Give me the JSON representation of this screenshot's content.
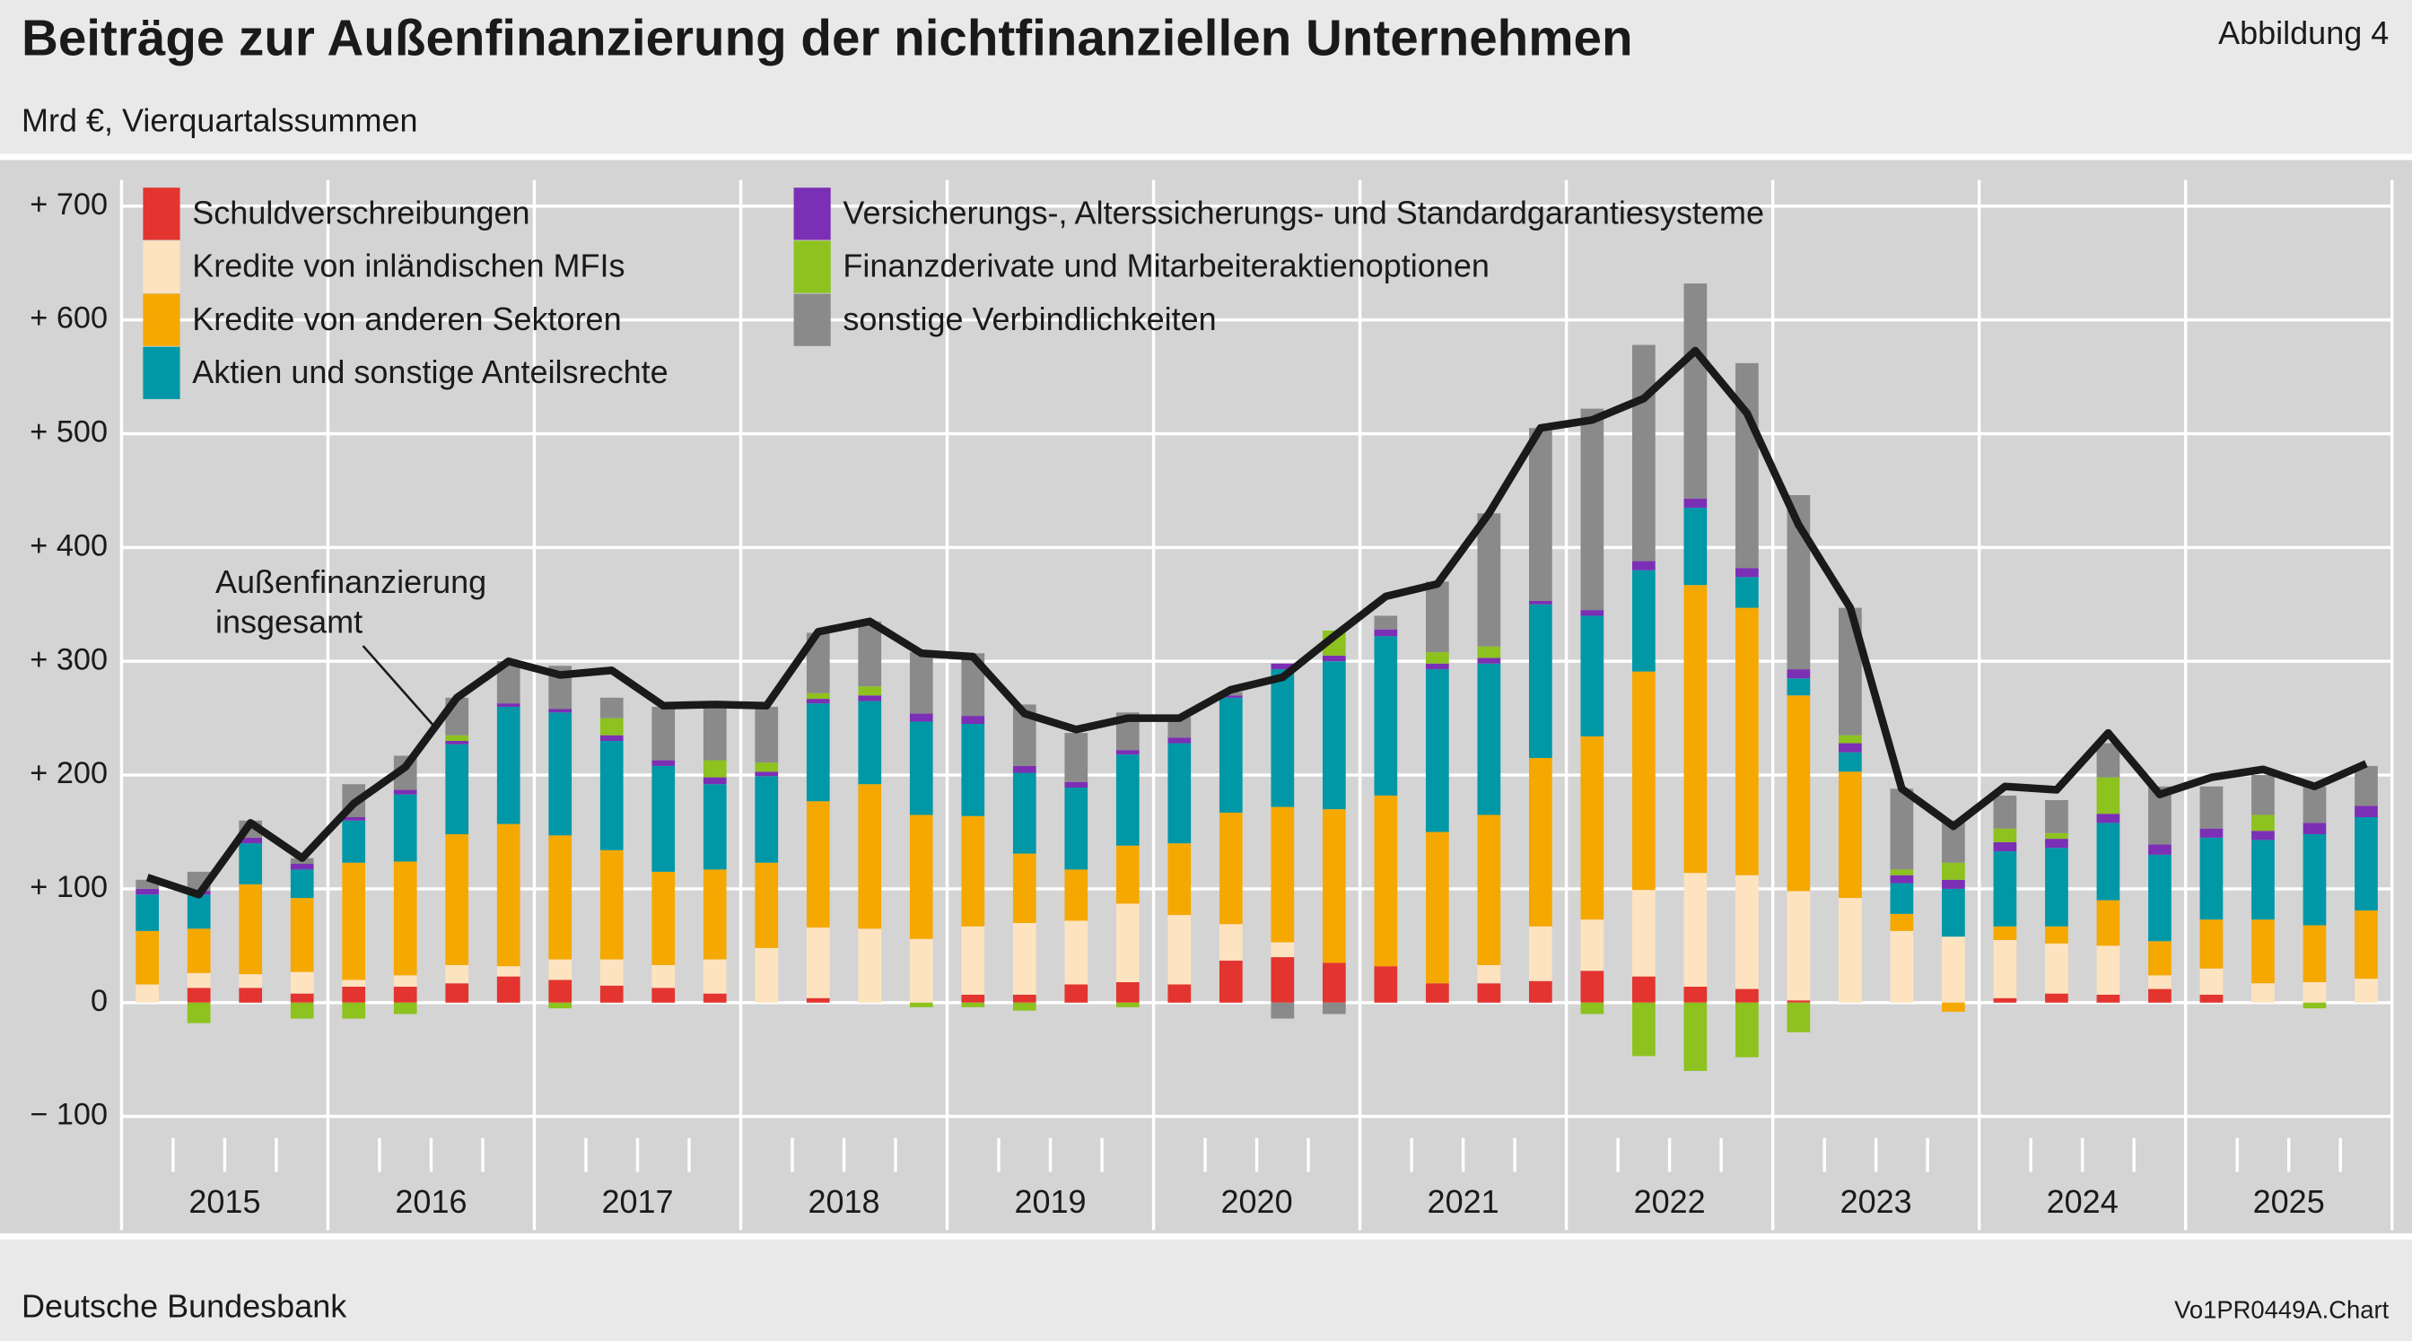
{
  "chart_data": {
    "type": "bar",
    "stacked": true,
    "title": "Beiträge zur Außenfinanzierung der nichtfinanziellen Unternehmen",
    "subtitle": "Mrd €, Vierquartalssummen",
    "figure_label": "Abbildung 4",
    "source": "Deutsche Bundesbank",
    "chart_id": "Vo1PR0449A.Chart",
    "categories": [
      null,
      null,
      null,
      null,
      null,
      null,
      null,
      null,
      null,
      null,
      null,
      null,
      null,
      null,
      null,
      null,
      null,
      null,
      null,
      null,
      null,
      null,
      null,
      null,
      null,
      null,
      null,
      null,
      null,
      null,
      null,
      null,
      null,
      null,
      null,
      null,
      null,
      null,
      null,
      null,
      null,
      null,
      null,
      null
    ],
    "years": [
      "2015",
      "2016",
      "2017",
      "2018",
      "2019",
      "2020",
      "2021",
      "2022",
      "2023",
      "2024",
      "2025"
    ],
    "ylim": [
      -100,
      700
    ],
    "yticks": [
      {
        "value": -100,
        "label": "− 100"
      },
      0,
      {
        "value": 100,
        "label": "+ 100"
      },
      {
        "value": 200,
        "label": "+ 200"
      },
      {
        "value": 300,
        "label": "+ 300"
      },
      {
        "value": 400,
        "label": "+ 400"
      },
      {
        "value": 500,
        "label": "+ 500"
      },
      {
        "value": 600,
        "label": "+ 600"
      },
      {
        "value": 700,
        "label": "+ 700"
      }
    ],
    "grid": true,
    "series": [
      {
        "name": "Schuldverschreibungen",
        "color": "#e3342f",
        "values": [
          0,
          13,
          13,
          8,
          14,
          14,
          17,
          23,
          20,
          15,
          13,
          8,
          0,
          4,
          0,
          0,
          7,
          7,
          16,
          18,
          16,
          37,
          40,
          35,
          32,
          17,
          17,
          19,
          28,
          23,
          14,
          12,
          2,
          0,
          0,
          0,
          4,
          8,
          7,
          12,
          7,
          0,
          0,
          0
        ]
      },
      {
        "name": "Kredite von inländischen MFIs",
        "color": "#fde3c0",
        "values": [
          16,
          13,
          12,
          19,
          6,
          10,
          16,
          9,
          18,
          23,
          20,
          30,
          48,
          62,
          65,
          56,
          60,
          63,
          56,
          69,
          61,
          32,
          13,
          0,
          0,
          0,
          16,
          48,
          45,
          76,
          100,
          100,
          96,
          92,
          63,
          58,
          51,
          44,
          43,
          12,
          23,
          17,
          18,
          21
        ]
      },
      {
        "name": "Kredite von anderen Sektoren",
        "color": "#f5a800",
        "values": [
          47,
          39,
          79,
          65,
          103,
          100,
          115,
          125,
          109,
          96,
          82,
          79,
          75,
          111,
          127,
          109,
          97,
          61,
          45,
          51,
          63,
          98,
          119,
          135,
          150,
          133,
          132,
          148,
          161,
          192,
          253,
          235,
          172,
          111,
          15,
          -8,
          12,
          15,
          40,
          30,
          43,
          56,
          50,
          60
        ]
      },
      {
        "name": "Aktien und sonstige Anteilsrechte",
        "color": "#0097a7",
        "values": [
          32,
          30,
          36,
          25,
          37,
          59,
          79,
          103,
          108,
          96,
          93,
          75,
          76,
          86,
          73,
          82,
          81,
          71,
          72,
          80,
          88,
          101,
          121,
          130,
          140,
          143,
          133,
          135,
          106,
          89,
          68,
          27,
          15,
          17,
          27,
          42,
          66,
          69,
          68,
          76,
          72,
          70,
          80,
          82
        ]
      },
      {
        "name": "Versicherungs-, Alterssicherungs- und Standardgarantiesysteme",
        "color": "#7b2fb5",
        "values": [
          5,
          3,
          5,
          5,
          3,
          4,
          3,
          3,
          3,
          5,
          5,
          6,
          4,
          4,
          5,
          7,
          7,
          6,
          5,
          4,
          5,
          2,
          5,
          5,
          6,
          5,
          5,
          3,
          5,
          8,
          8,
          8,
          8,
          8,
          7,
          8,
          8,
          8,
          8,
          9,
          8,
          8,
          10,
          10
        ]
      },
      {
        "name": "Finanzderivate und Mitarbeiteraktienoptionen",
        "color": "#8dc21f",
        "values": [
          0,
          -18,
          0,
          -14,
          -14,
          -10,
          5,
          0,
          -5,
          15,
          0,
          15,
          8,
          5,
          8,
          -4,
          -4,
          -7,
          0,
          -4,
          0,
          0,
          0,
          22,
          0,
          10,
          10,
          0,
          -10,
          -47,
          -60,
          -48,
          -26,
          7,
          5,
          15,
          12,
          5,
          32,
          0,
          0,
          14,
          -5,
          0
        ]
      },
      {
        "name": "sonstige Verbindlichkeiten",
        "color": "#8a8a8a",
        "values": [
          8,
          17,
          15,
          5,
          29,
          30,
          33,
          37,
          38,
          18,
          47,
          49,
          49,
          53,
          57,
          54,
          55,
          54,
          43,
          33,
          18,
          3,
          -14,
          -10,
          12,
          62,
          117,
          152,
          177,
          190,
          189,
          180,
          153,
          112,
          71,
          37,
          29,
          29,
          30,
          51,
          37,
          35,
          32,
          35
        ]
      }
    ],
    "total": {
      "color": "#1a1a1a",
      "values": [
        110,
        95,
        158,
        127,
        175,
        207,
        268,
        300,
        288,
        292,
        261,
        262,
        261,
        326,
        335,
        307,
        304,
        254,
        240,
        250,
        250,
        275,
        286,
        322,
        357,
        368,
        430,
        505,
        512,
        531,
        573,
        518,
        420,
        347,
        188,
        155,
        190,
        187,
        237,
        183,
        198,
        205,
        190,
        210
      ]
    },
    "annotation": [
      "Außenfinanzierung",
      "insgesamt"
    ]
  }
}
